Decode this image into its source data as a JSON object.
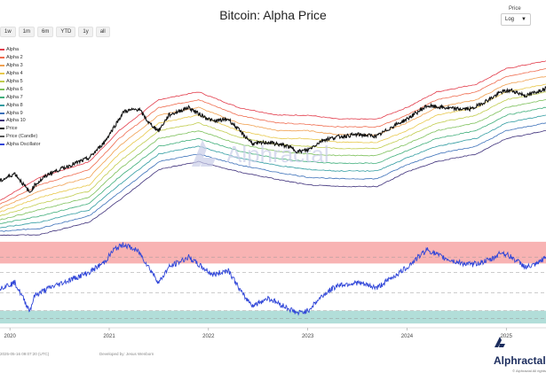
{
  "header": {
    "title": "Bitcoin: Alpha Price"
  },
  "range_buttons": [
    "1w",
    "1m",
    "6m",
    "YTD",
    "1y",
    "all"
  ],
  "scale_control": {
    "label": "Price",
    "value": "Log"
  },
  "colors": {
    "price": "#111111",
    "oscillator": "#2f45d8",
    "upper_zone": "#f59a9a",
    "lower_zone": "#9fd6cf"
  },
  "chart_data": {
    "type": "line",
    "title": "Bitcoin: Alpha Price",
    "x_ticks": [
      "2020",
      "2021",
      "2022",
      "2023",
      "2024",
      "2025"
    ],
    "x_range": [
      2019.9,
      2025.4
    ],
    "price_scale": "log",
    "legend_position": "left",
    "grid": false,
    "series": [
      {
        "name": "Alpha",
        "color": "#e23b4a",
        "t": [
          2019.9,
          2020.3,
          2020.8,
          2021.1,
          2021.5,
          2021.9,
          2022.3,
          2022.7,
          2023.0,
          2023.3,
          2023.7,
          2024.0,
          2024.3,
          2024.7,
          2025.0,
          2025.4
        ],
        "v": [
          3.6,
          3.9,
          4.1,
          4.5,
          4.9,
          5.0,
          4.8,
          4.7,
          4.7,
          4.65,
          4.65,
          4.8,
          5.0,
          5.1,
          5.3,
          5.4
        ]
      },
      {
        "name": "Alpha 2",
        "color": "#ef6b4e",
        "t": [
          2019.9,
          2020.3,
          2020.8,
          2021.1,
          2021.5,
          2021.9,
          2022.3,
          2022.7,
          2023.0,
          2023.3,
          2023.7,
          2024.0,
          2024.3,
          2024.7,
          2025.0,
          2025.4
        ],
        "v": [
          3.55,
          3.8,
          4.0,
          4.4,
          4.8,
          4.9,
          4.7,
          4.6,
          4.58,
          4.55,
          4.55,
          4.7,
          4.9,
          5.0,
          5.2,
          5.3
        ]
      },
      {
        "name": "Alpha 3",
        "color": "#f0a050",
        "t": [
          2019.9,
          2020.3,
          2020.8,
          2021.1,
          2021.5,
          2021.9,
          2022.3,
          2022.7,
          2023.0,
          2023.3,
          2023.7,
          2024.0,
          2024.3,
          2024.7,
          2025.0,
          2025.4
        ],
        "v": [
          3.5,
          3.72,
          3.9,
          4.3,
          4.7,
          4.8,
          4.6,
          4.5,
          4.5,
          4.45,
          4.45,
          4.6,
          4.8,
          4.9,
          5.1,
          5.2
        ]
      },
      {
        "name": "Alpha 4",
        "color": "#e8c84a",
        "t": [
          2019.9,
          2020.3,
          2020.8,
          2021.1,
          2021.5,
          2021.9,
          2022.3,
          2022.7,
          2023.0,
          2023.3,
          2023.7,
          2024.0,
          2024.3,
          2024.7,
          2025.0,
          2025.4
        ],
        "v": [
          3.45,
          3.64,
          3.8,
          4.2,
          4.6,
          4.7,
          4.5,
          4.4,
          4.4,
          4.35,
          4.35,
          4.5,
          4.7,
          4.8,
          5.0,
          5.1
        ]
      },
      {
        "name": "Alpha 5",
        "color": "#c0cc4c",
        "t": [
          2019.9,
          2020.3,
          2020.8,
          2021.1,
          2021.5,
          2021.9,
          2022.3,
          2022.7,
          2023.0,
          2023.3,
          2023.7,
          2024.0,
          2024.3,
          2024.7,
          2025.0,
          2025.4
        ],
        "v": [
          3.4,
          3.56,
          3.72,
          4.1,
          4.5,
          4.6,
          4.42,
          4.32,
          4.3,
          4.27,
          4.27,
          4.42,
          4.6,
          4.7,
          4.9,
          5.0
        ]
      },
      {
        "name": "Alpha 6",
        "color": "#7cc05a",
        "t": [
          2019.9,
          2020.3,
          2020.8,
          2021.1,
          2021.5,
          2021.9,
          2022.3,
          2022.7,
          2023.0,
          2023.3,
          2023.7,
          2024.0,
          2024.3,
          2024.7,
          2025.0,
          2025.4
        ],
        "v": [
          3.35,
          3.48,
          3.64,
          4.0,
          4.4,
          4.5,
          4.33,
          4.23,
          4.2,
          4.18,
          4.18,
          4.33,
          4.5,
          4.6,
          4.8,
          4.9
        ]
      },
      {
        "name": "Alpha 7",
        "color": "#3fae7a",
        "t": [
          2019.9,
          2020.3,
          2020.8,
          2021.1,
          2021.5,
          2021.9,
          2022.3,
          2022.7,
          2023.0,
          2023.3,
          2023.7,
          2024.0,
          2024.3,
          2024.7,
          2025.0,
          2025.4
        ],
        "v": [
          3.3,
          3.4,
          3.56,
          3.9,
          4.3,
          4.4,
          4.24,
          4.14,
          4.1,
          4.08,
          4.08,
          4.24,
          4.4,
          4.5,
          4.7,
          4.8
        ]
      },
      {
        "name": "Alpha 8",
        "color": "#2f9ba0",
        "t": [
          2019.9,
          2020.3,
          2020.8,
          2021.1,
          2021.5,
          2021.9,
          2022.3,
          2022.7,
          2023.0,
          2023.3,
          2023.7,
          2024.0,
          2024.3,
          2024.7,
          2025.0,
          2025.4
        ],
        "v": [
          3.25,
          3.32,
          3.48,
          3.8,
          4.2,
          4.3,
          4.15,
          4.05,
          4.0,
          3.98,
          3.98,
          4.15,
          4.3,
          4.4,
          4.6,
          4.7
        ]
      },
      {
        "name": "Alpha 9",
        "color": "#3a6fb8",
        "t": [
          2019.9,
          2020.3,
          2020.8,
          2021.1,
          2021.5,
          2021.9,
          2022.3,
          2022.7,
          2023.0,
          2023.3,
          2023.7,
          2024.0,
          2024.3,
          2024.7,
          2025.0,
          2025.4
        ],
        "v": [
          3.2,
          3.24,
          3.4,
          3.7,
          4.1,
          4.2,
          4.06,
          3.96,
          3.9,
          3.88,
          3.88,
          4.06,
          4.2,
          4.3,
          4.5,
          4.6
        ]
      },
      {
        "name": "Alpha 10",
        "color": "#3d2f7a",
        "t": [
          2019.9,
          2020.3,
          2020.8,
          2021.1,
          2021.5,
          2021.9,
          2022.3,
          2022.7,
          2023.0,
          2023.3,
          2023.7,
          2024.0,
          2024.3,
          2024.7,
          2025.0,
          2025.4
        ],
        "v": [
          3.15,
          3.16,
          3.32,
          3.6,
          4.0,
          4.1,
          3.97,
          3.87,
          3.8,
          3.78,
          3.78,
          3.97,
          4.1,
          4.2,
          4.4,
          4.5
        ]
      },
      {
        "name": "Price",
        "color": "#111111",
        "t": [
          2019.9,
          2020.05,
          2020.2,
          2020.25,
          2020.4,
          2020.6,
          2020.8,
          2020.95,
          2021.05,
          2021.15,
          2021.3,
          2021.4,
          2021.5,
          2021.6,
          2021.8,
          2021.9,
          2022.05,
          2022.2,
          2022.35,
          2022.45,
          2022.6,
          2022.8,
          2022.9,
          2023.0,
          2023.15,
          2023.3,
          2023.5,
          2023.7,
          2023.85,
          2024.0,
          2024.2,
          2024.35,
          2024.5,
          2024.65,
          2024.85,
          2024.95,
          2025.05,
          2025.2,
          2025.3,
          2025.4
        ],
        "v": [
          3.85,
          3.95,
          3.7,
          3.8,
          3.95,
          4.05,
          4.15,
          4.35,
          4.55,
          4.75,
          4.78,
          4.6,
          4.5,
          4.7,
          4.8,
          4.72,
          4.62,
          4.65,
          4.45,
          4.33,
          4.35,
          4.3,
          4.23,
          4.25,
          4.38,
          4.42,
          4.45,
          4.43,
          4.55,
          4.65,
          4.82,
          4.8,
          4.78,
          4.78,
          4.92,
          5.0,
          5.02,
          4.95,
          5.0,
          5.05
        ]
      },
      {
        "name": "Alpha Oscillator",
        "color": "#2f45d8",
        "t": [
          2019.9,
          2020.05,
          2020.2,
          2020.25,
          2020.4,
          2020.6,
          2020.8,
          2020.95,
          2021.05,
          2021.15,
          2021.3,
          2021.4,
          2021.5,
          2021.6,
          2021.8,
          2021.9,
          2022.05,
          2022.2,
          2022.35,
          2022.45,
          2022.6,
          2022.8,
          2022.9,
          2023.0,
          2023.15,
          2023.3,
          2023.5,
          2023.7,
          2023.85,
          2024.0,
          2024.2,
          2024.35,
          2024.5,
          2024.65,
          2024.85,
          2024.95,
          2025.05,
          2025.2,
          2025.3,
          2025.4
        ],
        "v": [
          -0.6,
          -0.4,
          -1.5,
          -0.9,
          -0.6,
          -0.3,
          0.0,
          0.4,
          0.9,
          1.1,
          0.8,
          0.2,
          -0.4,
          0.2,
          0.6,
          0.3,
          -0.1,
          0.1,
          -0.9,
          -1.3,
          -1.0,
          -1.4,
          -1.6,
          -1.5,
          -0.9,
          -0.5,
          -0.4,
          -0.6,
          -0.2,
          0.2,
          0.9,
          0.6,
          0.4,
          0.3,
          0.5,
          0.8,
          0.6,
          0.2,
          0.3,
          0.6
        ]
      }
    ],
    "oscillator_zones": {
      "upper": [
        0.35,
        1.2
      ],
      "lower": [
        -2.0,
        -1.5
      ],
      "dashed_levels": [
        -1.8,
        -1.5,
        -0.8,
        0.0,
        0.6
      ]
    },
    "price_ylim": [
      3.1,
      5.5
    ],
    "oscillator_ylim": [
      -2.1,
      1.3
    ]
  },
  "footer": {
    "timestamp": "2025-05-16 09:07:20 (UTC)",
    "developer": "Developed by: Jesus Wenborn"
  },
  "brand": {
    "name": "Alphractal",
    "rights": "© Alphractal All rights",
    "watermark": "Alphractal"
  }
}
